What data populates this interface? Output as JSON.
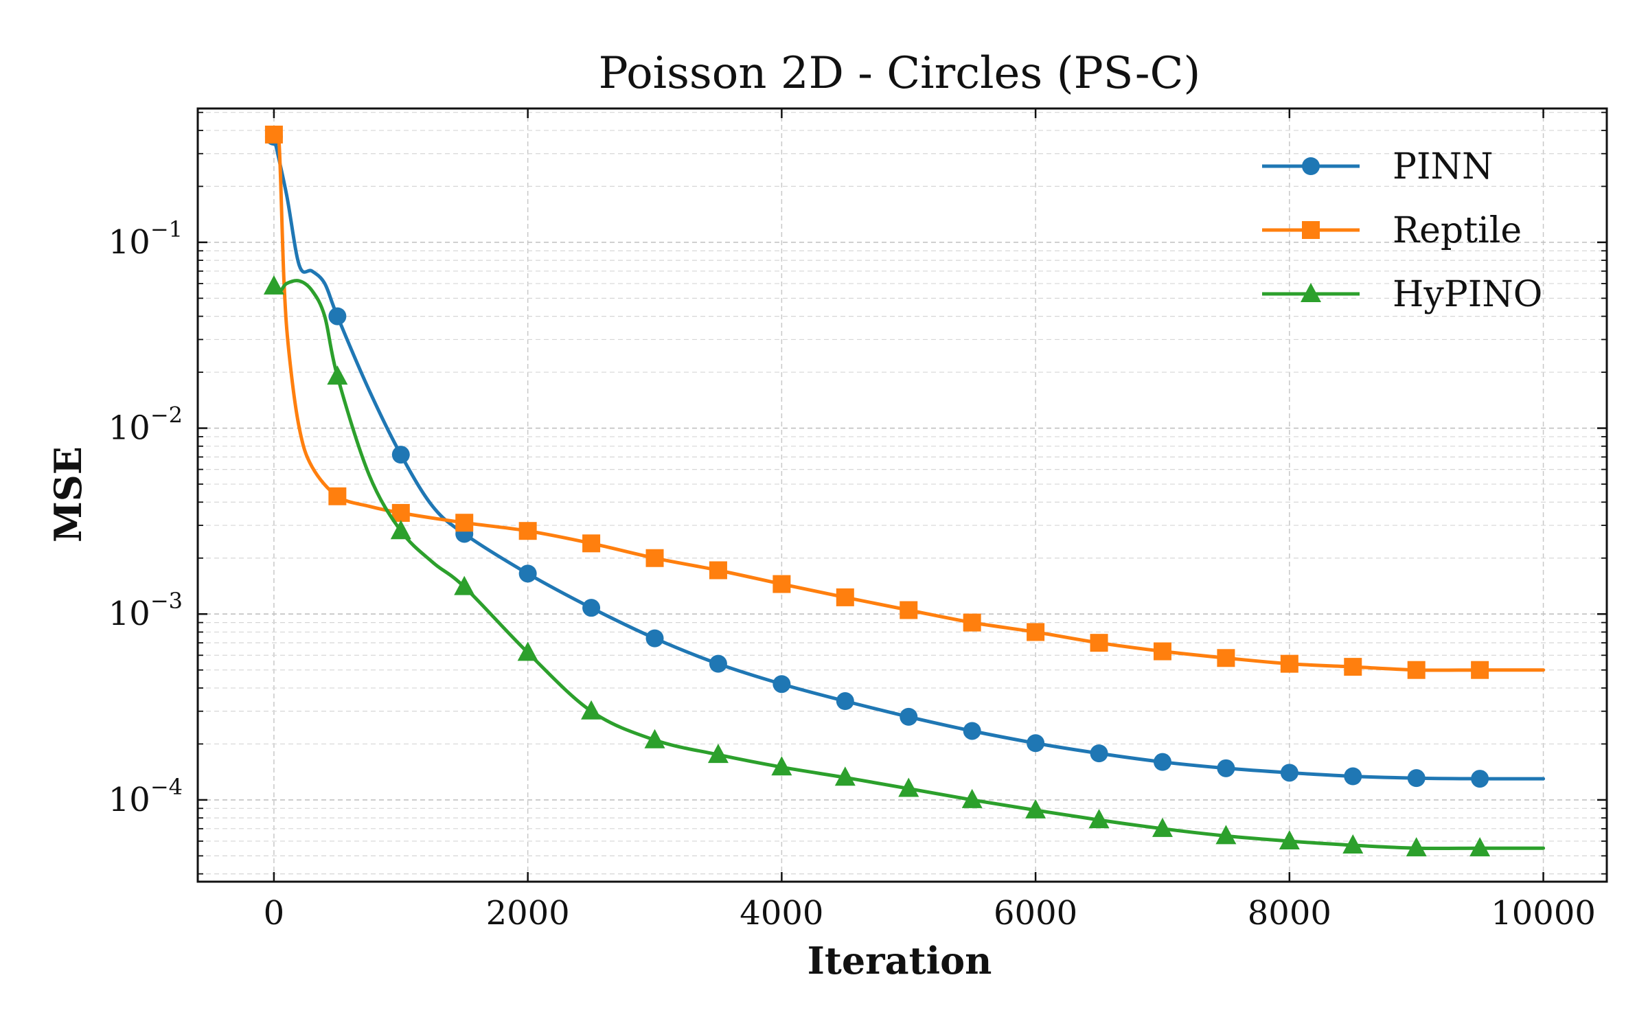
{
  "chart_data": {
    "type": "line",
    "title": "Poisson 2D - Circles (PS-C)",
    "xlabel": "Iteration",
    "ylabel": "MSE",
    "xlim": [
      -600,
      10500
    ],
    "ylim_log10": [
      -4.44,
      -0.28
    ],
    "yscale": "log",
    "grid": true,
    "legend_position": "top-right",
    "x_ticks": [
      0,
      2000,
      4000,
      6000,
      8000,
      10000
    ],
    "x_tick_labels": [
      "0",
      "2000",
      "4000",
      "6000",
      "8000",
      "10000"
    ],
    "y_tick_exponents": [
      -1,
      -2,
      -3,
      -4
    ],
    "y_tick_labels": [
      {
        "base": "10",
        "exp": "−1"
      },
      {
        "base": "10",
        "exp": "−2"
      },
      {
        "base": "10",
        "exp": "−3"
      },
      {
        "base": "10",
        "exp": "−4"
      }
    ],
    "series": [
      {
        "name": "PINN",
        "color": "#1f77b4",
        "marker": "circle",
        "curve_x": [
          0,
          100,
          200,
          300,
          400,
          500,
          750,
          1000,
          1250,
          1500,
          2000,
          2500,
          3000,
          3500,
          4000,
          4500,
          5000,
          5500,
          6000,
          6500,
          7000,
          7500,
          8000,
          8500,
          9000,
          9500,
          10000
        ],
        "curve_y": [
          0.37,
          0.18,
          0.075,
          0.07,
          0.06,
          0.04,
          0.016,
          0.0072,
          0.0038,
          0.0027,
          0.00165,
          0.00108,
          0.00074,
          0.00054,
          0.00042,
          0.00034,
          0.00028,
          0.000235,
          0.000202,
          0.000178,
          0.00016,
          0.000148,
          0.00014,
          0.000134,
          0.000131,
          0.00013,
          0.00013
        ],
        "marker_x": [
          0,
          500,
          1000,
          1500,
          2000,
          2500,
          3000,
          3500,
          4000,
          4500,
          5000,
          5500,
          6000,
          6500,
          7000,
          7500,
          8000,
          8500,
          9000,
          9500
        ],
        "marker_y": [
          0.37,
          0.04,
          0.0072,
          0.0027,
          0.00165,
          0.00108,
          0.00074,
          0.00054,
          0.00042,
          0.00034,
          0.00028,
          0.000235,
          0.000202,
          0.000178,
          0.00016,
          0.000148,
          0.00014,
          0.000134,
          0.000131,
          0.00013
        ]
      },
      {
        "name": "Reptile",
        "color": "#ff7f0e",
        "marker": "square",
        "curve_x": [
          0,
          40,
          80,
          120,
          200,
          300,
          500,
          750,
          1000,
          1500,
          2000,
          2500,
          3000,
          3500,
          4000,
          4500,
          5000,
          5500,
          6000,
          6500,
          7000,
          7500,
          8000,
          8500,
          9000,
          9500,
          10000
        ],
        "curve_y": [
          0.38,
          0.35,
          0.06,
          0.025,
          0.01,
          0.0062,
          0.0043,
          0.0038,
          0.0035,
          0.0031,
          0.0028,
          0.0024,
          0.002,
          0.00172,
          0.00145,
          0.00123,
          0.00105,
          0.0009,
          0.0008,
          0.0007,
          0.00063,
          0.00058,
          0.00054,
          0.00052,
          0.0005,
          0.0005,
          0.0005
        ],
        "marker_x": [
          0,
          500,
          1000,
          1500,
          2000,
          2500,
          3000,
          3500,
          4000,
          4500,
          5000,
          5500,
          6000,
          6500,
          7000,
          7500,
          8000,
          8500,
          9000,
          9500
        ],
        "marker_y": [
          0.38,
          0.0043,
          0.0035,
          0.0031,
          0.0028,
          0.0024,
          0.002,
          0.00172,
          0.00145,
          0.00123,
          0.00105,
          0.0009,
          0.0008,
          0.0007,
          0.00063,
          0.00058,
          0.00054,
          0.00052,
          0.0005,
          0.0005
        ],
        "marker_label_x": []
      },
      {
        "name": "HyPINO",
        "color": "#2ca02c",
        "marker": "triangle",
        "curve_x": [
          0,
          50,
          100,
          200,
          300,
          400,
          500,
          750,
          1000,
          1250,
          1500,
          2000,
          2500,
          3000,
          3500,
          4000,
          4500,
          5000,
          5500,
          6000,
          6500,
          7000,
          7500,
          8000,
          8500,
          9000,
          9500,
          10000
        ],
        "curve_y": [
          0.058,
          0.055,
          0.06,
          0.062,
          0.055,
          0.04,
          0.019,
          0.0056,
          0.0028,
          0.0019,
          0.0014,
          0.00062,
          0.0003,
          0.00021,
          0.000175,
          0.00015,
          0.000132,
          0.000115,
          0.0001,
          8.8e-05,
          7.8e-05,
          7e-05,
          6.4e-05,
          6e-05,
          5.7e-05,
          5.5e-05,
          5.5e-05,
          5.5e-05
        ],
        "marker_x": [
          0,
          500,
          1000,
          1500,
          2000,
          2500,
          3000,
          3500,
          4000,
          4500,
          5000,
          5500,
          6000,
          6500,
          7000,
          7500,
          8000,
          8500,
          9000,
          9500
        ],
        "marker_y": [
          0.058,
          0.019,
          0.0028,
          0.0014,
          0.00062,
          0.0003,
          0.00021,
          0.000175,
          0.00015,
          0.000132,
          0.000115,
          0.0001,
          8.8e-05,
          7.8e-05,
          7e-05,
          6.4e-05,
          6e-05,
          5.7e-05,
          5.5e-05,
          5.5e-05
        ]
      }
    ]
  }
}
